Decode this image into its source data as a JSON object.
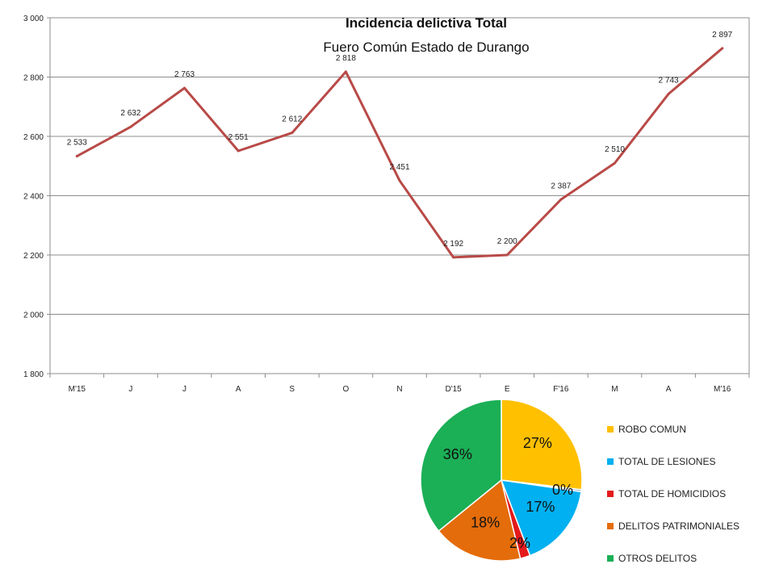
{
  "chart_data": [
    {
      "type": "line",
      "title": "Incidencia delictiva Total",
      "subtitle": "Fuero Común Estado de Durango",
      "categories": [
        "M'15",
        "J",
        "J",
        "A",
        "S",
        "O",
        "N",
        "D'15",
        "E",
        "F'16",
        "M",
        "A",
        "M'16"
      ],
      "values": [
        2533,
        2632,
        2763,
        2551,
        2612,
        2818,
        2451,
        2192,
        2200,
        2387,
        2510,
        2743,
        2897
      ],
      "data_labels": [
        "2 533",
        "2 632",
        "2 763",
        "2 551",
        "2 612",
        "2 818",
        "2 451",
        "2 192",
        "2 200",
        "2 387",
        "2 510",
        "2 743",
        "2 897"
      ],
      "ylim": [
        1800,
        3000
      ],
      "yticks": [
        1800,
        2000,
        2200,
        2400,
        2600,
        2800,
        3000
      ],
      "ytick_labels": [
        "1 800",
        "2 000",
        "2 200",
        "2 400",
        "2 600",
        "2 800",
        "3 000"
      ],
      "grid": true,
      "line_color": "#B84A47"
    },
    {
      "type": "pie",
      "categories": [
        "ROBO COMUN",
        "TOTAL DE LESIONES",
        "TOTAL DE HOMICIDIOS",
        "DELITOS PATRIMONIALES",
        "OTROS DELITOS"
      ],
      "slices": [
        {
          "name": "ROBO COMUN",
          "value": 27,
          "label": "27%",
          "color": "#FFC000"
        },
        {
          "name": "",
          "value": 0.4,
          "label": "0%",
          "color": "#8FA8C8"
        },
        {
          "name": "TOTAL DE LESIONES",
          "value": 17,
          "label": "17%",
          "color": "#00B0F0"
        },
        {
          "name": "TOTAL DE HOMICIDIOS",
          "value": 2,
          "label": "2%",
          "color": "#E31A1C"
        },
        {
          "name": "DELITOS PATRIMONIALES",
          "value": 18,
          "label": "18%",
          "color": "#E46C0A"
        },
        {
          "name": "OTROS DELITOS",
          "value": 36,
          "label": "36%",
          "color": "#1BAF56"
        }
      ],
      "legend": [
        {
          "label": "ROBO COMUN",
          "color": "#FFC000"
        },
        {
          "label": "TOTAL DE LESIONES",
          "color": "#00B0F0"
        },
        {
          "label": "TOTAL DE HOMICIDIOS",
          "color": "#E31A1C"
        },
        {
          "label": "DELITOS PATRIMONIALES",
          "color": "#E46C0A"
        },
        {
          "label": "OTROS DELITOS",
          "color": "#1BAF56"
        }
      ],
      "legend_position": "right"
    }
  ]
}
